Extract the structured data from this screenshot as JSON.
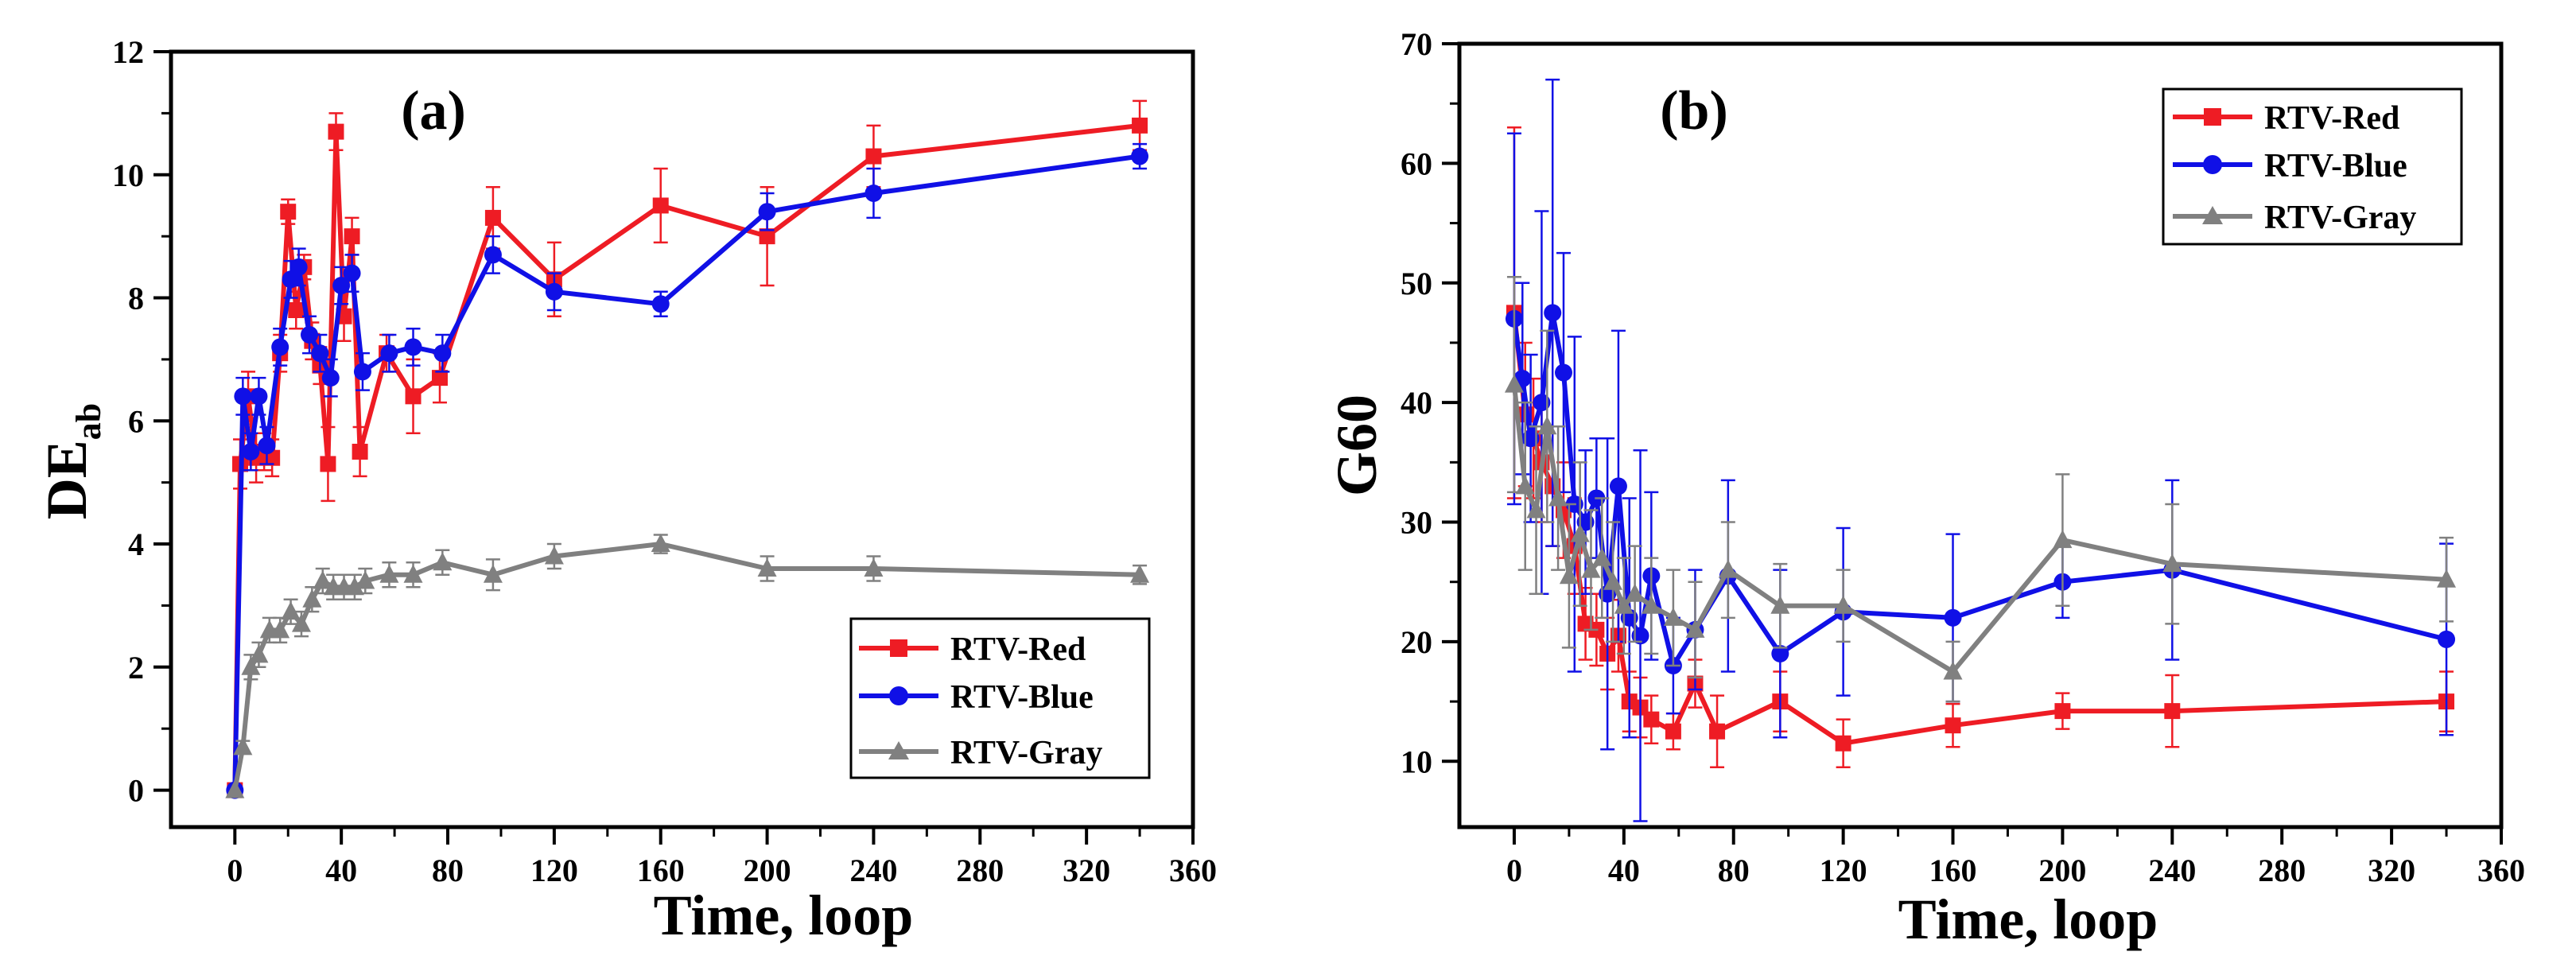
{
  "colors": {
    "red": "#ee1c24",
    "blue": "#1010e6",
    "gray": "#808080",
    "axis": "#000000"
  },
  "chart_data": [
    {
      "type": "line",
      "panel_label": "(a)",
      "xlabel": "Time, loop",
      "ylabel_main": "DE",
      "ylabel_sub": "ab",
      "xlim": [
        -24,
        360
      ],
      "ylim": [
        -0.6,
        12
      ],
      "x_ticks": [
        0,
        40,
        80,
        120,
        160,
        200,
        240,
        280,
        320,
        360
      ],
      "y_ticks": [
        0,
        2,
        4,
        6,
        8,
        10,
        12
      ],
      "grid": false,
      "legend_position": "bottom-right",
      "series": [
        {
          "name": "RTV-Red",
          "color_key": "red",
          "marker": "square",
          "x": [
            0,
            2,
            5,
            8,
            11,
            14,
            17,
            20,
            23,
            26,
            29,
            32,
            35,
            38,
            41,
            44,
            47,
            57,
            67,
            77,
            97,
            120,
            160,
            200,
            240,
            340
          ],
          "y": [
            0,
            5.3,
            6.4,
            5.4,
            5.5,
            5.4,
            7.1,
            9.4,
            7.8,
            8.5,
            7.3,
            6.9,
            5.3,
            10.7,
            7.7,
            9.0,
            5.5,
            7.1,
            6.4,
            6.7,
            9.3,
            8.3,
            9.5,
            9.0,
            10.3,
            10.8
          ],
          "err": [
            0,
            0.4,
            0.4,
            0.4,
            0.3,
            0.3,
            0.3,
            0.2,
            0.3,
            0.2,
            0.3,
            0.3,
            0.6,
            0.3,
            0.4,
            0.3,
            0.4,
            0.3,
            0.6,
            0.4,
            0.5,
            0.6,
            0.6,
            0.8,
            0.5,
            0.4
          ]
        },
        {
          "name": "RTV-Blue",
          "color_key": "blue",
          "marker": "circle",
          "x": [
            0,
            3,
            6,
            9,
            12,
            17,
            21,
            24,
            28,
            32,
            36,
            40,
            44,
            48,
            58,
            67,
            78,
            97,
            120,
            160,
            200,
            240,
            340
          ],
          "y": [
            0,
            6.4,
            5.5,
            6.4,
            5.6,
            7.2,
            8.3,
            8.5,
            7.4,
            7.1,
            6.7,
            8.2,
            8.4,
            6.8,
            7.1,
            7.2,
            7.1,
            8.7,
            8.1,
            7.9,
            9.4,
            9.7,
            10.3
          ],
          "err": [
            0,
            0.3,
            0.3,
            0.3,
            0.3,
            0.3,
            0.3,
            0.3,
            0.3,
            0.3,
            0.3,
            0.3,
            0.3,
            0.3,
            0.3,
            0.3,
            0.3,
            0.3,
            0.3,
            0.2,
            0.3,
            0.4,
            0.2
          ]
        },
        {
          "name": "RTV-Gray",
          "color_key": "gray",
          "marker": "triangle",
          "x": [
            0,
            3,
            6,
            9,
            13,
            17,
            21,
            25,
            29,
            33,
            37,
            41,
            45,
            49,
            58,
            67,
            78,
            97,
            120,
            160,
            200,
            240,
            340
          ],
          "y": [
            0,
            0.7,
            2.0,
            2.2,
            2.6,
            2.6,
            2.9,
            2.7,
            3.1,
            3.4,
            3.3,
            3.3,
            3.3,
            3.4,
            3.5,
            3.5,
            3.7,
            3.5,
            3.8,
            4.0,
            3.6,
            3.6,
            3.5
          ],
          "err": [
            0,
            0.1,
            0.2,
            0.2,
            0.2,
            0.2,
            0.2,
            0.2,
            0.2,
            0.2,
            0.2,
            0.2,
            0.2,
            0.2,
            0.2,
            0.2,
            0.2,
            0.25,
            0.2,
            0.15,
            0.2,
            0.2,
            0.15
          ]
        }
      ]
    },
    {
      "type": "line",
      "panel_label": "(b)",
      "xlabel": "Time, loop",
      "ylabel_main": "G60",
      "ylabel_sub": "",
      "xlim": [
        -20,
        360
      ],
      "ylim": [
        4.5,
        70
      ],
      "x_ticks": [
        0,
        40,
        80,
        120,
        160,
        200,
        240,
        280,
        320,
        360
      ],
      "y_ticks": [
        10,
        20,
        30,
        40,
        50,
        60,
        70
      ],
      "grid": false,
      "legend_position": "top-right",
      "series": [
        {
          "name": "RTV-Red",
          "color_key": "red",
          "marker": "square",
          "x": [
            0,
            4,
            7,
            10,
            14,
            18,
            22,
            26,
            30,
            34,
            38,
            42,
            46,
            50,
            58,
            66,
            74,
            97,
            120,
            160,
            200,
            240,
            340
          ],
          "y": [
            47.5,
            39,
            37,
            35,
            33,
            31,
            28,
            21.5,
            21,
            19,
            20.5,
            15,
            14.5,
            13.5,
            12.5,
            16.5,
            12.5,
            15,
            11.5,
            13,
            14.2,
            14.2,
            15
          ],
          "err": [
            15.5,
            6,
            5,
            5,
            5,
            4,
            4,
            3,
            3,
            3,
            3,
            2.5,
            2.5,
            2,
            1.5,
            2,
            3,
            2.5,
            2,
            1.8,
            1.5,
            3,
            2.5
          ]
        },
        {
          "name": "RTV-Blue",
          "color_key": "blue",
          "marker": "circle",
          "x": [
            0,
            3,
            6,
            10,
            14,
            18,
            22,
            26,
            30,
            34,
            38,
            42,
            46,
            50,
            58,
            66,
            78,
            97,
            120,
            160,
            200,
            240,
            340
          ],
          "y": [
            47,
            42,
            37,
            40,
            47.5,
            42.5,
            31.5,
            30,
            32,
            24,
            33,
            22,
            20.5,
            25.5,
            18,
            21,
            25.5,
            19,
            22.5,
            22,
            25,
            26,
            20.2
          ],
          "err": [
            15.5,
            8,
            7,
            16,
            19.5,
            10,
            14,
            6,
            5,
            13,
            13,
            10,
            15.5,
            7,
            4,
            5,
            8,
            7,
            7,
            7,
            3,
            7.5,
            8
          ]
        },
        {
          "name": "RTV-Gray",
          "color_key": "gray",
          "marker": "triangle",
          "x": [
            0,
            4,
            8,
            12,
            16,
            20,
            24,
            28,
            32,
            36,
            40,
            44,
            50,
            58,
            66,
            78,
            97,
            120,
            160,
            200,
            240,
            340
          ],
          "y": [
            41.5,
            33,
            31,
            38,
            32,
            25.5,
            29,
            26,
            27,
            25,
            23,
            24,
            23,
            22,
            21,
            26,
            23,
            23,
            17.5,
            28.5,
            26.5,
            25.2
          ],
          "err": [
            9,
            7,
            7,
            8,
            6,
            6,
            6,
            5,
            5,
            5,
            4,
            4,
            4,
            4,
            4,
            4,
            3.5,
            3,
            2.5,
            5.5,
            5,
            3.5
          ]
        }
      ]
    }
  ]
}
